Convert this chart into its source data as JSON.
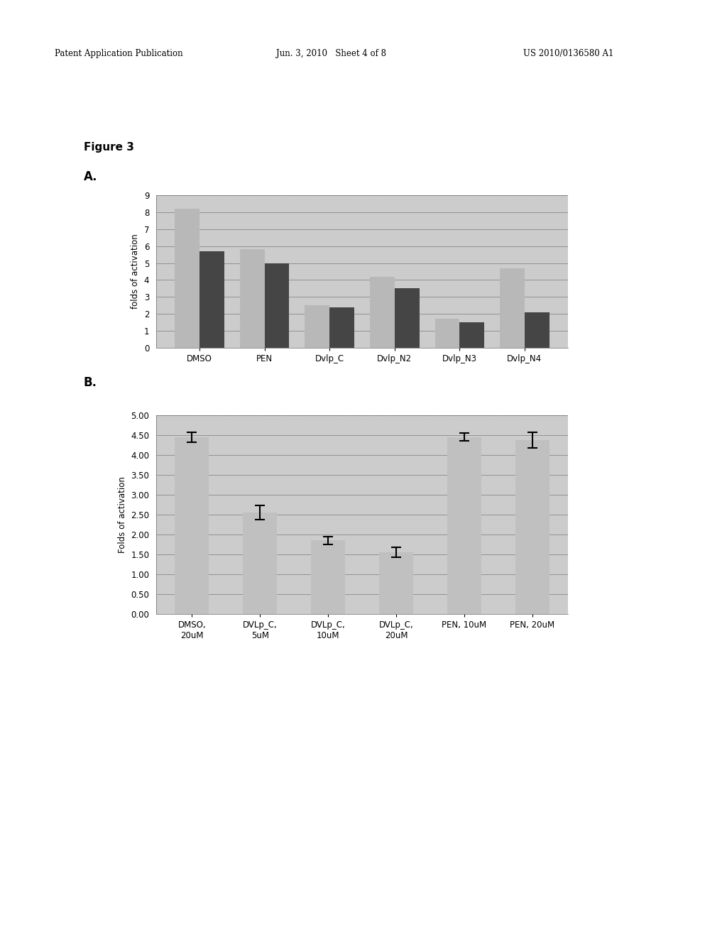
{
  "page_header_left": "Patent Application Publication",
  "page_header_mid": "Jun. 3, 2010   Sheet 4 of 8",
  "page_header_right": "US 2010/0136580 A1",
  "figure_label": "Figure 3",
  "panel_A_label": "A.",
  "panel_B_label": "B.",
  "chartA": {
    "categories": [
      "DMSO",
      "PEN",
      "Dvlp_C",
      "Dvlp_N2",
      "Dvlp_N3",
      "Dvlp_N4"
    ],
    "series1_values": [
      8.2,
      5.8,
      2.5,
      4.2,
      1.7,
      4.7
    ],
    "series2_values": [
      5.7,
      5.0,
      2.4,
      3.5,
      1.5,
      2.1
    ],
    "series1_color": "#b8b8b8",
    "series2_color": "#454545",
    "ylabel": "folds of activation",
    "ylim": [
      0,
      9
    ],
    "yticks": [
      0,
      1,
      2,
      3,
      4,
      5,
      6,
      7,
      8,
      9
    ],
    "grid_color": "#888888",
    "bg_color": "#cccccc"
  },
  "chartB": {
    "categories": [
      "DMSO,\n20uM",
      "DVLp_C,\n5uM",
      "DVLp_C,\n10uM",
      "DVLp_C,\n20uM",
      "PEN, 10uM",
      "PEN, 20uM"
    ],
    "values": [
      4.45,
      2.55,
      1.85,
      1.55,
      4.45,
      4.38
    ],
    "errors": [
      0.12,
      0.18,
      0.1,
      0.12,
      0.1,
      0.2
    ],
    "bar_color": "#c0c0c0",
    "ylabel": "Folds of activation",
    "ylim": [
      0.0,
      5.0
    ],
    "yticks": [
      0.0,
      0.5,
      1.0,
      1.5,
      2.0,
      2.5,
      3.0,
      3.5,
      4.0,
      4.5,
      5.0
    ],
    "grid_color": "#888888",
    "bg_color": "#cccccc"
  }
}
